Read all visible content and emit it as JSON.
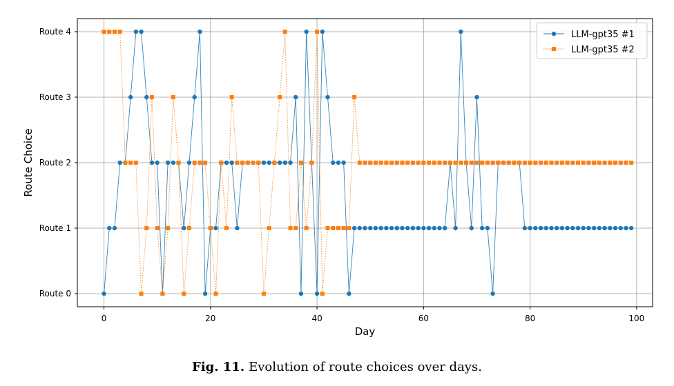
{
  "caption": {
    "label": "Fig. 11.",
    "text": "Evolution of route choices over days."
  },
  "chart_data": {
    "type": "line",
    "xlabel": "Day",
    "ylabel": "Route Choice",
    "xlim": [
      -5,
      103
    ],
    "ylim": [
      -0.2,
      4.2
    ],
    "xticks": [
      0,
      20,
      40,
      60,
      80,
      100
    ],
    "yticks": [
      0,
      1,
      2,
      3,
      4
    ],
    "ytick_labels": [
      "Route 0",
      "Route 1",
      "Route 2",
      "Route 3",
      "Route 4"
    ],
    "grid": true,
    "legend_position": "top-right",
    "x": [
      0,
      1,
      2,
      3,
      4,
      5,
      6,
      7,
      8,
      9,
      10,
      11,
      12,
      13,
      14,
      15,
      16,
      17,
      18,
      19,
      20,
      21,
      22,
      23,
      24,
      25,
      26,
      27,
      28,
      29,
      30,
      31,
      32,
      33,
      34,
      35,
      36,
      37,
      38,
      39,
      40,
      41,
      42,
      43,
      44,
      45,
      46,
      47,
      48,
      49,
      50,
      51,
      52,
      53,
      54,
      55,
      56,
      57,
      58,
      59,
      60,
      61,
      62,
      63,
      64,
      65,
      66,
      67,
      68,
      69,
      70,
      71,
      72,
      73,
      74,
      75,
      76,
      77,
      78,
      79,
      80,
      81,
      82,
      83,
      84,
      85,
      86,
      87,
      88,
      89,
      90,
      91,
      92,
      93,
      94,
      95,
      96,
      97,
      98,
      99
    ],
    "series": [
      {
        "name": "LLM-gpt35 #1",
        "color": "#1f77b4",
        "marker": "circle",
        "line_style": "solid",
        "values": [
          0,
          1,
          1,
          2,
          2,
          3,
          4,
          4,
          3,
          2,
          2,
          0,
          2,
          2,
          2,
          1,
          2,
          3,
          4,
          0,
          1,
          1,
          2,
          2,
          2,
          1,
          2,
          2,
          2,
          2,
          2,
          2,
          2,
          2,
          2,
          2,
          3,
          0,
          4,
          2,
          0,
          4,
          3,
          2,
          2,
          2,
          0,
          1,
          1,
          1,
          1,
          1,
          1,
          1,
          1,
          1,
          1,
          1,
          1,
          1,
          1,
          1,
          1,
          1,
          1,
          2,
          1,
          4,
          2,
          1,
          3,
          1,
          1,
          0,
          2,
          2,
          2,
          2,
          2,
          1,
          1,
          1,
          1,
          1,
          1,
          1,
          1,
          1,
          1,
          1,
          1,
          1,
          1,
          1,
          1,
          1,
          1,
          1,
          1,
          1
        ]
      },
      {
        "name": "LLM-gpt35 #2",
        "color": "#ff7f0e",
        "marker": "square",
        "line_style": "dotted",
        "values": [
          4,
          4,
          4,
          4,
          2,
          2,
          2,
          0,
          1,
          3,
          1,
          0,
          1,
          3,
          2,
          0,
          1,
          2,
          2,
          2,
          1,
          0,
          2,
          1,
          3,
          2,
          2,
          2,
          2,
          2,
          0,
          1,
          2,
          3,
          4,
          1,
          1,
          2,
          1,
          2,
          4,
          0,
          1,
          1,
          1,
          1,
          1,
          3,
          2,
          2,
          2,
          2,
          2,
          2,
          2,
          2,
          2,
          2,
          2,
          2,
          2,
          2,
          2,
          2,
          2,
          2,
          2,
          2,
          2,
          2,
          2,
          2,
          2,
          2,
          2,
          2,
          2,
          2,
          2,
          2,
          2,
          2,
          2,
          2,
          2,
          2,
          2,
          2,
          2,
          2,
          2,
          2,
          2,
          2,
          2,
          2,
          2,
          2,
          2,
          2
        ]
      }
    ]
  }
}
